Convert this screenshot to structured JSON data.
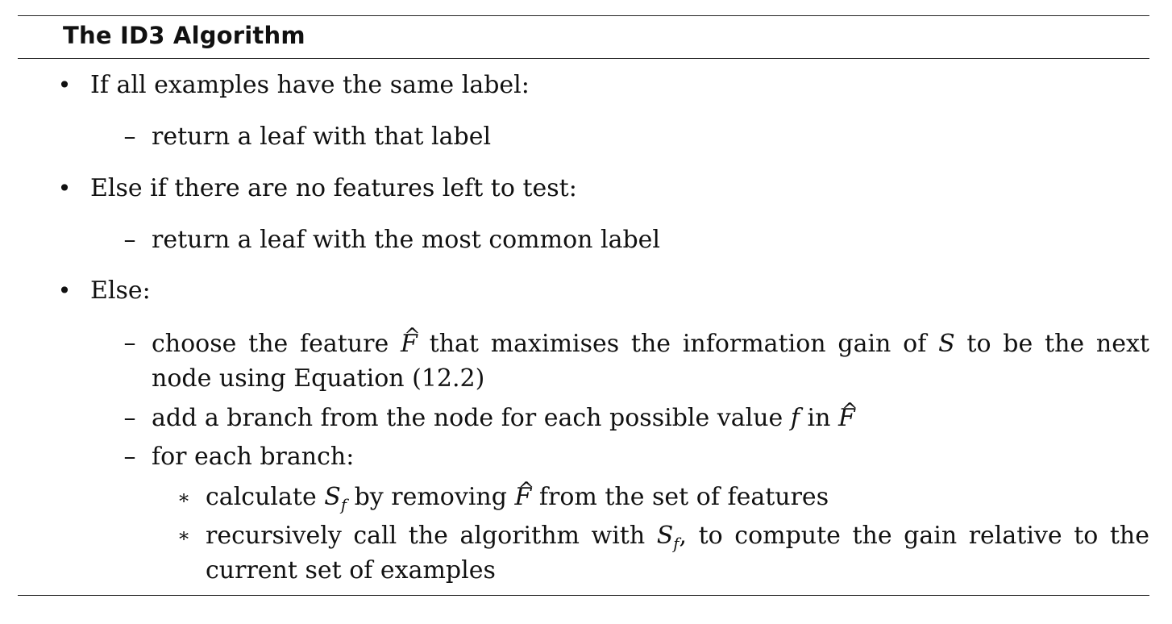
{
  "title": "The ID3 Algorithm",
  "markers": {
    "bullet": "•",
    "dash": "–",
    "star": "∗"
  },
  "items": [
    {
      "text": "If all examples have the same label:",
      "sub": [
        {
          "text": "return a leaf with that label"
        }
      ]
    },
    {
      "text": "Else if there are no features left to test:",
      "sub": [
        {
          "text": "return a leaf with the most common label"
        }
      ]
    },
    {
      "text": "Else:",
      "sub": [
        {
          "parts": [
            "choose the feature",
            "F",
            "that maximises the information gain of",
            "S",
            "to be the next"
          ],
          "cont": "node using Equation (12.2)"
        },
        {
          "parts": [
            "add a branch from the node for each possible value",
            "f",
            "in",
            "F"
          ]
        },
        {
          "text": "for each branch:",
          "sub": [
            {
              "parts": [
                "calculate",
                "S",
                "f",
                "by removing",
                "F",
                "from the set of features"
              ]
            },
            {
              "parts": [
                "recursively call the algorithm with",
                "S",
                "f",
                ", to compute the gain relative to the"
              ],
              "cont": "current set of examples"
            }
          ]
        }
      ]
    }
  ]
}
